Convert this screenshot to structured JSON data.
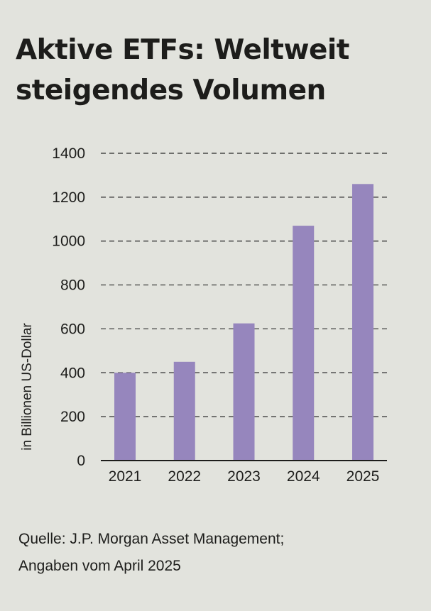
{
  "title": "Aktive ETFs: Weltweit steigendes Volumen",
  "source": {
    "line1": "Quelle: J.P. Morgan Asset Management;",
    "line2": "Angaben vom April 2025"
  },
  "colors": {
    "background": "#e2e3dd",
    "bar": "#9686bd",
    "text": "#1d1d1b",
    "grid": "#2a2a2a"
  },
  "chart_data": {
    "type": "bar",
    "title": "Aktive ETFs: Weltweit steigendes Volumen",
    "xlabel": "",
    "ylabel": "in Billionen US-Dollar",
    "categories": [
      "2021",
      "2022",
      "2023",
      "2024",
      "2025"
    ],
    "values": [
      400,
      450,
      625,
      1070,
      1260
    ],
    "ylim": [
      0,
      1400
    ],
    "yticks": [
      0,
      200,
      400,
      600,
      800,
      1000,
      1200,
      1400
    ],
    "grid": true,
    "grid_style": "dashed",
    "legend": "none"
  }
}
